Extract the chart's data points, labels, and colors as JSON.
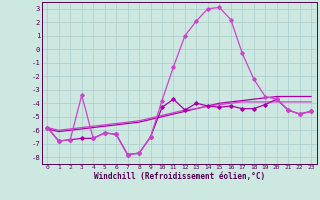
{
  "xlabel": "Windchill (Refroidissement éolien,°C)",
  "xlim": [
    -0.5,
    23.5
  ],
  "ylim": [
    -8.5,
    3.5
  ],
  "yticks": [
    3,
    2,
    1,
    0,
    -1,
    -2,
    -3,
    -4,
    -5,
    -6,
    -7,
    -8
  ],
  "xticks": [
    0,
    1,
    2,
    3,
    4,
    5,
    6,
    7,
    8,
    9,
    10,
    11,
    12,
    13,
    14,
    15,
    16,
    17,
    18,
    19,
    20,
    21,
    22,
    23
  ],
  "bg_color": "#cce8e0",
  "grid_color": "#aacccc",
  "line_color1": "#aa00aa",
  "line_color2": "#cc44cc",
  "series1": [
    -5.8,
    -6.8,
    -6.7,
    -3.4,
    -6.6,
    -6.2,
    -6.3,
    -7.8,
    -7.7,
    -6.5,
    -3.8,
    -1.3,
    1.0,
    2.1,
    3.0,
    3.1,
    2.2,
    -0.3,
    -2.2,
    -3.5,
    -3.7,
    -4.5,
    -4.8,
    -4.6
  ],
  "series2": [
    -5.8,
    -6.8,
    -6.7,
    -6.6,
    -6.6,
    -6.2,
    -6.3,
    -7.8,
    -7.7,
    -6.5,
    -4.3,
    -3.7,
    -4.5,
    -4.0,
    -4.2,
    -4.3,
    -4.2,
    -4.4,
    -4.4,
    -4.1,
    -3.7,
    -4.5,
    -4.8,
    -4.6
  ],
  "series3": [
    -5.9,
    -6.1,
    -6.0,
    -5.9,
    -5.8,
    -5.7,
    -5.6,
    -5.5,
    -5.4,
    -5.2,
    -5.0,
    -4.8,
    -4.6,
    -4.4,
    -4.2,
    -4.0,
    -3.9,
    -3.8,
    -3.7,
    -3.6,
    -3.5,
    -3.5,
    -3.5,
    -3.5
  ],
  "series4": [
    -5.8,
    -6.0,
    -5.9,
    -5.8,
    -5.7,
    -5.6,
    -5.5,
    -5.4,
    -5.3,
    -5.1,
    -4.9,
    -4.7,
    -4.5,
    -4.4,
    -4.2,
    -4.1,
    -4.0,
    -3.9,
    -3.9,
    -3.9,
    -3.9,
    -3.9,
    -3.9,
    -3.9
  ]
}
